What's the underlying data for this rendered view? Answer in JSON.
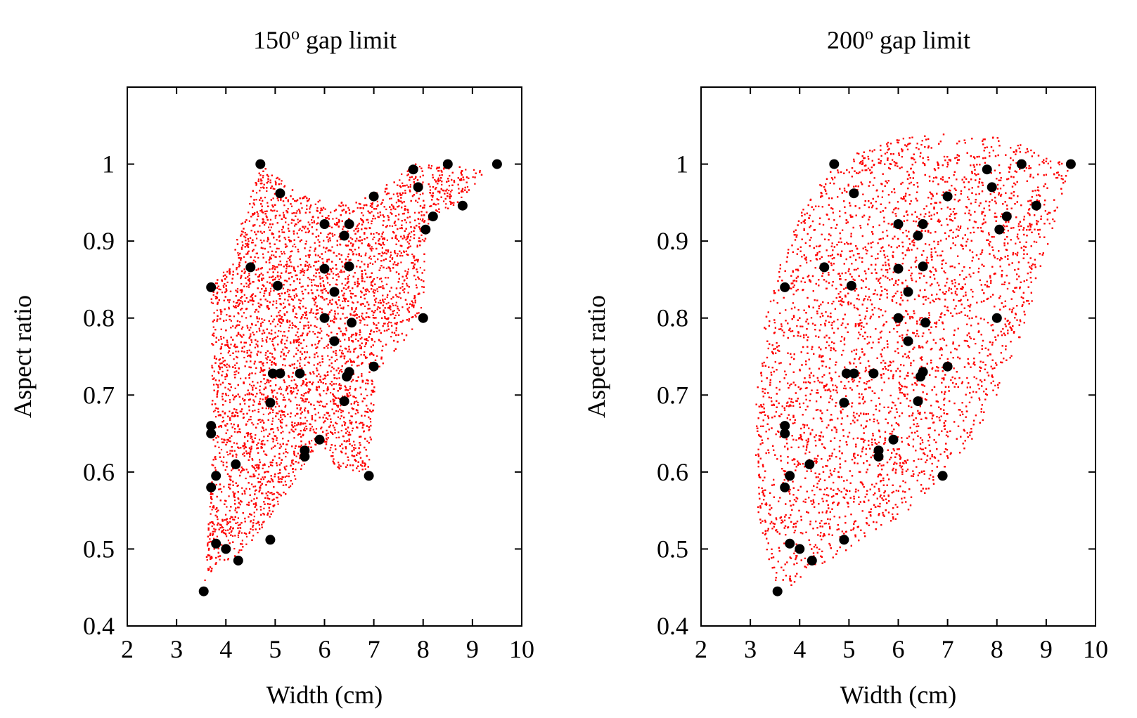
{
  "chart_data": [
    {
      "type": "scatter",
      "title": "150",
      "title_sup": "o",
      "title_rest": " gap limit",
      "xlabel": "Width (cm)",
      "ylabel": "Aspect ratio",
      "xlim": [
        2,
        10
      ],
      "ylim": [
        0.4,
        1.1
      ],
      "xticks": [
        "2",
        "3",
        "4",
        "5",
        "6",
        "7",
        "8",
        "9",
        "10"
      ],
      "yticks": [
        "0.4",
        "0.5",
        "0.6",
        "0.7",
        "0.8",
        "0.9",
        "1"
      ],
      "grid": false,
      "legend": "none",
      "colors": {
        "region": "#ff0000",
        "points": "#000000"
      },
      "region_boundary": [
        [
          3.55,
          0.45
        ],
        [
          3.68,
          0.56
        ],
        [
          3.72,
          0.66
        ],
        [
          3.7,
          0.84
        ],
        [
          4.05,
          0.87
        ],
        [
          4.7,
          1.0
        ],
        [
          5.5,
          0.96
        ],
        [
          6.5,
          0.95
        ],
        [
          7.0,
          0.96
        ],
        [
          7.8,
          1.0
        ],
        [
          8.5,
          1.0
        ],
        [
          9.3,
          0.99
        ],
        [
          8.7,
          0.95
        ],
        [
          8.2,
          0.93
        ],
        [
          8.05,
          0.91
        ],
        [
          8.0,
          0.8
        ],
        [
          7.05,
          0.73
        ],
        [
          6.9,
          0.6
        ],
        [
          6.3,
          0.6
        ],
        [
          5.9,
          0.64
        ],
        [
          4.9,
          0.54
        ],
        [
          4.25,
          0.49
        ],
        [
          3.8,
          0.48
        ]
      ],
      "points": [
        [
          3.55,
          0.445
        ],
        [
          3.7,
          0.84
        ],
        [
          3.7,
          0.66
        ],
        [
          3.7,
          0.65
        ],
        [
          3.7,
          0.58
        ],
        [
          3.8,
          0.595
        ],
        [
          3.8,
          0.507
        ],
        [
          4.0,
          0.5
        ],
        [
          4.2,
          0.61
        ],
        [
          4.25,
          0.485
        ],
        [
          4.5,
          0.866
        ],
        [
          4.7,
          1.0
        ],
        [
          4.9,
          0.69
        ],
        [
          4.9,
          0.512
        ],
        [
          4.95,
          0.728
        ],
        [
          5.05,
          0.842
        ],
        [
          5.1,
          0.962
        ],
        [
          5.1,
          0.728
        ],
        [
          5.5,
          0.728
        ],
        [
          5.6,
          0.628
        ],
        [
          5.6,
          0.62
        ],
        [
          5.9,
          0.642
        ],
        [
          6.0,
          0.922
        ],
        [
          6.0,
          0.864
        ],
        [
          6.0,
          0.8
        ],
        [
          6.2,
          0.834
        ],
        [
          6.2,
          0.77
        ],
        [
          6.4,
          0.907
        ],
        [
          6.4,
          0.692
        ],
        [
          6.45,
          0.724
        ],
        [
          6.5,
          0.922
        ],
        [
          6.5,
          0.867
        ],
        [
          6.5,
          0.73
        ],
        [
          6.55,
          0.794
        ],
        [
          6.9,
          0.595
        ],
        [
          7.0,
          0.958
        ],
        [
          7.0,
          0.737
        ],
        [
          7.8,
          0.993
        ],
        [
          7.9,
          0.97
        ],
        [
          8.0,
          0.8
        ],
        [
          8.05,
          0.915
        ],
        [
          8.2,
          0.932
        ],
        [
          8.5,
          1.0
        ],
        [
          8.8,
          0.946
        ],
        [
          9.5,
          1.0
        ]
      ]
    },
    {
      "type": "scatter",
      "title": "200",
      "title_sup": "o",
      "title_rest": " gap limit",
      "xlabel": "Width (cm)",
      "ylabel": "Aspect ratio",
      "xlim": [
        2,
        10
      ],
      "ylim": [
        0.4,
        1.1
      ],
      "xticks": [
        "2",
        "3",
        "4",
        "5",
        "6",
        "7",
        "8",
        "9",
        "10"
      ],
      "yticks": [
        "0.4",
        "0.5",
        "0.6",
        "0.7",
        "0.8",
        "0.9",
        "1"
      ],
      "grid": false,
      "legend": "none",
      "colors": {
        "region": "#ff0000",
        "points": "#000000"
      },
      "region_boundary": [
        [
          3.55,
          0.445
        ],
        [
          3.3,
          0.5
        ],
        [
          3.15,
          0.55
        ],
        [
          3.1,
          0.6
        ],
        [
          3.12,
          0.7
        ],
        [
          3.3,
          0.8
        ],
        [
          3.6,
          0.87
        ],
        [
          4.0,
          0.935
        ],
        [
          4.7,
          1.0
        ],
        [
          5.5,
          1.025
        ],
        [
          6.0,
          1.035
        ],
        [
          7.0,
          1.04
        ],
        [
          8.0,
          1.035
        ],
        [
          8.7,
          1.02
        ],
        [
          9.2,
          1.008
        ],
        [
          9.5,
          1.0
        ],
        [
          9.1,
          0.9
        ],
        [
          8.5,
          0.78
        ],
        [
          8.0,
          0.7
        ],
        [
          7.4,
          0.63
        ],
        [
          6.9,
          0.59
        ],
        [
          6.0,
          0.54
        ],
        [
          5.0,
          0.5
        ],
        [
          4.3,
          0.47
        ],
        [
          3.9,
          0.455
        ]
      ],
      "points": [
        [
          3.55,
          0.445
        ],
        [
          3.7,
          0.84
        ],
        [
          3.7,
          0.66
        ],
        [
          3.7,
          0.65
        ],
        [
          3.7,
          0.58
        ],
        [
          3.8,
          0.595
        ],
        [
          3.8,
          0.507
        ],
        [
          4.0,
          0.5
        ],
        [
          4.2,
          0.61
        ],
        [
          4.25,
          0.485
        ],
        [
          4.5,
          0.866
        ],
        [
          4.7,
          1.0
        ],
        [
          4.9,
          0.69
        ],
        [
          4.9,
          0.512
        ],
        [
          4.95,
          0.728
        ],
        [
          5.05,
          0.842
        ],
        [
          5.1,
          0.962
        ],
        [
          5.1,
          0.728
        ],
        [
          5.5,
          0.728
        ],
        [
          5.6,
          0.628
        ],
        [
          5.6,
          0.62
        ],
        [
          5.9,
          0.642
        ],
        [
          6.0,
          0.922
        ],
        [
          6.0,
          0.864
        ],
        [
          6.0,
          0.8
        ],
        [
          6.2,
          0.834
        ],
        [
          6.2,
          0.77
        ],
        [
          6.4,
          0.907
        ],
        [
          6.4,
          0.692
        ],
        [
          6.45,
          0.724
        ],
        [
          6.5,
          0.922
        ],
        [
          6.5,
          0.867
        ],
        [
          6.5,
          0.73
        ],
        [
          6.55,
          0.794
        ],
        [
          6.9,
          0.595
        ],
        [
          7.0,
          0.958
        ],
        [
          7.0,
          0.737
        ],
        [
          7.8,
          0.993
        ],
        [
          7.9,
          0.97
        ],
        [
          8.0,
          0.8
        ],
        [
          8.05,
          0.915
        ],
        [
          8.2,
          0.932
        ],
        [
          8.5,
          1.0
        ],
        [
          8.8,
          0.946
        ],
        [
          9.5,
          1.0
        ]
      ]
    }
  ]
}
